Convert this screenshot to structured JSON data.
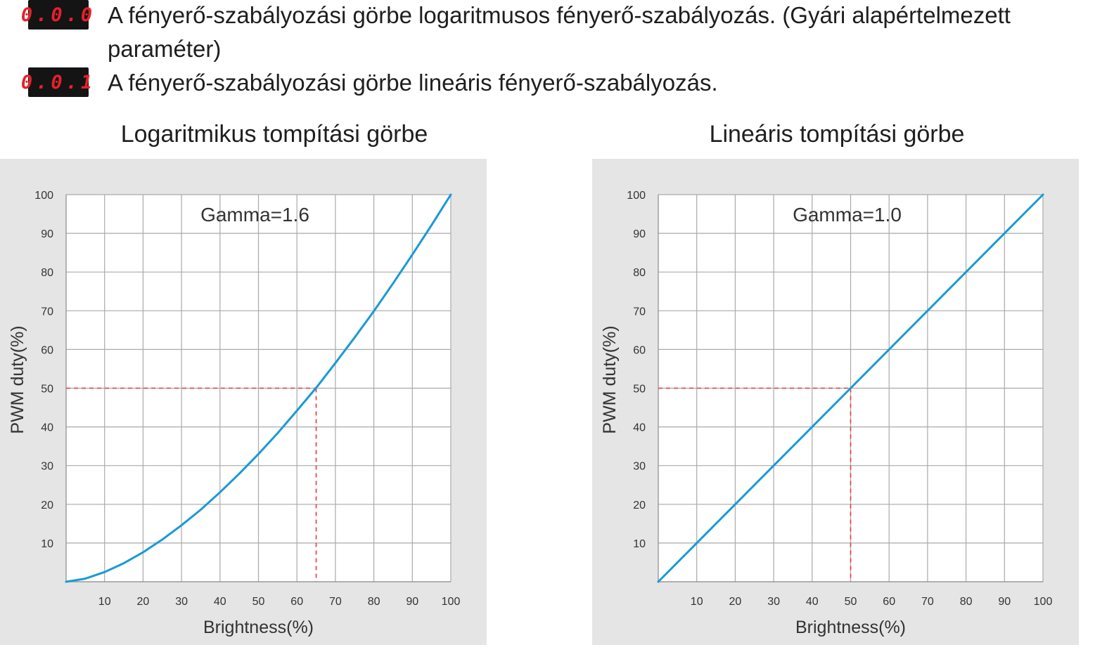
{
  "descriptions": [
    {
      "code": "0.0.0",
      "text": "A fényerő-szabályozási görbe logaritmusos fényerő-szabályozás. (Gyári alapértelmezett paraméter)"
    },
    {
      "code": "0.0.1",
      "text": "A fényerő-szabályozási görbe lineáris fényerő-szabályozás."
    }
  ],
  "colors": {
    "curve": "#1a9ad6",
    "guide": "#e8383d",
    "grid": "#aaaaaa",
    "panel": "#e5e5e5",
    "led_bg": "#141414",
    "led_text": "#e8202a"
  },
  "chart_data": [
    {
      "type": "line",
      "title": "Logaritmikus tompítási görbe",
      "annotation": "Gamma=1.6",
      "gamma": 1.6,
      "xlabel": "Brightness(%)",
      "ylabel": "PWM duty(%)",
      "xlim": [
        0,
        100
      ],
      "ylim": [
        0,
        100
      ],
      "x_ticks": [
        10,
        20,
        30,
        40,
        50,
        60,
        70,
        80,
        90,
        100
      ],
      "y_ticks": [
        10,
        20,
        30,
        40,
        50,
        60,
        70,
        80,
        90,
        100
      ],
      "grid": true,
      "series": [
        {
          "x": [
            0,
            5,
            10,
            15,
            20,
            25,
            30,
            35,
            40,
            45,
            50,
            55,
            60,
            65,
            70,
            75,
            80,
            85,
            90,
            95,
            100
          ],
          "y": [
            0,
            0.8,
            2.5,
            4.8,
            7.6,
            10.9,
            14.6,
            18.6,
            23.1,
            27.9,
            33.0,
            38.4,
            44.2,
            50.1,
            56.5,
            63.1,
            69.9,
            77.1,
            84.5,
            92.1,
            100
          ]
        }
      ],
      "reference_point": {
        "x": 65,
        "y": 50
      }
    },
    {
      "type": "line",
      "title": "Lineáris tompítási görbe",
      "annotation": "Gamma=1.0",
      "gamma": 1.0,
      "xlabel": "Brightness(%)",
      "ylabel": "PWM duty(%)",
      "xlim": [
        0,
        100
      ],
      "ylim": [
        0,
        100
      ],
      "x_ticks": [
        10,
        20,
        30,
        40,
        50,
        60,
        70,
        80,
        90,
        100
      ],
      "y_ticks": [
        10,
        20,
        30,
        40,
        50,
        60,
        70,
        80,
        90,
        100
      ],
      "grid": true,
      "series": [
        {
          "x": [
            0,
            10,
            20,
            30,
            40,
            50,
            60,
            70,
            80,
            90,
            100
          ],
          "y": [
            0,
            10,
            20,
            30,
            40,
            50,
            60,
            70,
            80,
            90,
            100
          ]
        }
      ],
      "reference_point": {
        "x": 50,
        "y": 50
      }
    }
  ]
}
